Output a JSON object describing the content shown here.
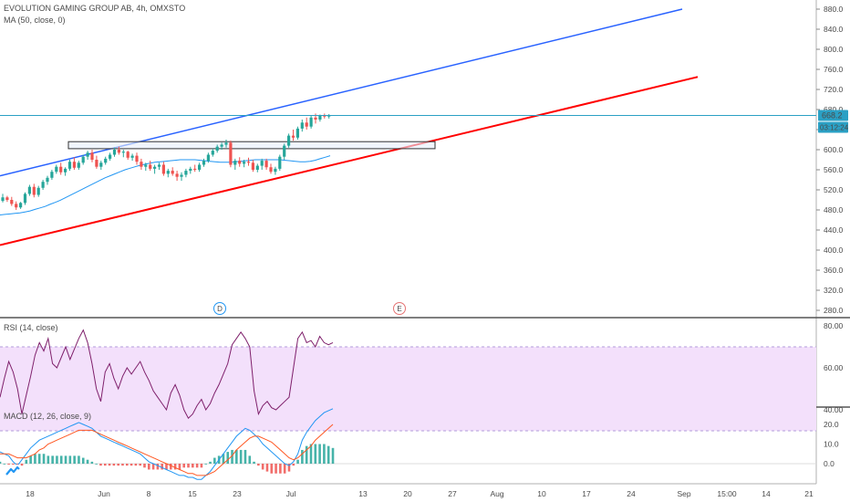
{
  "chart_data": {
    "type": "candlestick",
    "title": "EVOLUTION GAMING GROUP AB, 4h, OMXSTO",
    "indicator_label": "MA (50, close, 0)",
    "current_price": "668.2",
    "countdown": "03:12:24",
    "price_axis": {
      "ticks": [
        "880.0",
        "840.0",
        "800.0",
        "760.0",
        "720.0",
        "680.0",
        "640.0",
        "600.0",
        "560.0",
        "520.0",
        "480.0",
        "440.0",
        "400.0",
        "360.0",
        "320.0",
        "280.0"
      ],
      "range": [
        260,
        900
      ]
    },
    "time_axis": {
      "ticks": [
        "18",
        "Jun",
        "8",
        "15",
        "23",
        "Jul",
        "13",
        "20",
        "27",
        "Aug",
        "10",
        "17",
        "24",
        "Sep",
        "15:00",
        "14",
        "21"
      ]
    },
    "markers": [
      "D",
      "E"
    ],
    "rsi": {
      "label": "RSI (14, close)",
      "ticks": [
        "80.00",
        "60.00",
        "40.00"
      ],
      "range": [
        25,
        85
      ],
      "band": [
        30,
        70
      ],
      "values": [
        46,
        55,
        63,
        58,
        50,
        38,
        47,
        56,
        66,
        72,
        68,
        74,
        62,
        60,
        65,
        70,
        64,
        69,
        74,
        78,
        72,
        62,
        50,
        44,
        58,
        62,
        55,
        50,
        56,
        60,
        57,
        60,
        63,
        58,
        54,
        49,
        46,
        43,
        40,
        48,
        52,
        47,
        40,
        36,
        38,
        42,
        45,
        40,
        43,
        48,
        52,
        57,
        62,
        71,
        74,
        77,
        74,
        70,
        49,
        38,
        42,
        44,
        41,
        40,
        42,
        44,
        46,
        60,
        74,
        77,
        72,
        73,
        70,
        75,
        72,
        71,
        72
      ]
    },
    "macd": {
      "label": "MACD (12, 26, close, 9)",
      "ticks": [
        "20.0",
        "10.0",
        "0.0"
      ],
      "range": [
        -10,
        30
      ],
      "macd_line": [
        6,
        5,
        4,
        1,
        -1,
        2,
        5,
        8,
        10,
        12,
        13,
        14,
        15,
        16,
        17,
        18,
        19,
        20,
        21,
        20,
        19,
        18,
        16,
        14,
        13,
        12,
        11,
        10,
        9,
        8,
        7,
        6,
        5,
        3,
        1,
        0,
        -1,
        -2,
        -3,
        -4,
        -5,
        -6,
        -6,
        -7,
        -7,
        -8,
        -8,
        -6,
        -4,
        -1,
        2,
        5,
        8,
        11,
        14,
        16,
        18,
        17,
        15,
        13,
        10,
        8,
        6,
        4,
        2,
        0,
        -1,
        1,
        5,
        12,
        16,
        19,
        22,
        24,
        26,
        27,
        28
      ],
      "signal_line": [
        5,
        5,
        5,
        4,
        3,
        3,
        3,
        4,
        5,
        7,
        8,
        10,
        11,
        12,
        13,
        14,
        15,
        16,
        17,
        17,
        17,
        17,
        16,
        15,
        14,
        13,
        12,
        11,
        10,
        9,
        8,
        7,
        6,
        5,
        4,
        3,
        2,
        1,
        0,
        -1,
        -2,
        -3,
        -4,
        -5,
        -5,
        -6,
        -6,
        -6,
        -5,
        -4,
        -2,
        0,
        2,
        4,
        7,
        9,
        11,
        13,
        14,
        14,
        13,
        12,
        11,
        9,
        7,
        5,
        3,
        2,
        3,
        5,
        7,
        9,
        12,
        14,
        16,
        18,
        20
      ],
      "histogram": [
        1,
        0,
        -1,
        -3,
        -4,
        -1,
        2,
        4,
        5,
        5,
        5,
        4,
        4,
        4,
        4,
        4,
        4,
        4,
        4,
        3,
        2,
        1,
        0,
        -1,
        -1,
        -1,
        -1,
        -1,
        -1,
        -1,
        -1,
        -1,
        -1,
        -2,
        -3,
        -3,
        -3,
        -3,
        -3,
        -3,
        -3,
        -3,
        -2,
        -2,
        -2,
        -2,
        -2,
        0,
        1,
        3,
        4,
        5,
        6,
        7,
        7,
        7,
        7,
        4,
        1,
        -1,
        -3,
        -4,
        -5,
        -5,
        -5,
        -5,
        -4,
        -1,
        2,
        7,
        9,
        10,
        10,
        10,
        10,
        9,
        8
      ]
    },
    "candles": [
      [
        498,
        512,
        495,
        505
      ],
      [
        505,
        508,
        496,
        500
      ],
      [
        500,
        506,
        488,
        492
      ],
      [
        492,
        497,
        480,
        485
      ],
      [
        485,
        496,
        482,
        494
      ],
      [
        494,
        515,
        490,
        512
      ],
      [
        512,
        530,
        508,
        526
      ],
      [
        526,
        532,
        505,
        510
      ],
      [
        510,
        528,
        506,
        524
      ],
      [
        524,
        540,
        520,
        536
      ],
      [
        536,
        548,
        530,
        544
      ],
      [
        544,
        560,
        540,
        556
      ],
      [
        556,
        570,
        552,
        566
      ],
      [
        566,
        574,
        550,
        555
      ],
      [
        555,
        565,
        548,
        562
      ],
      [
        562,
        580,
        558,
        576
      ],
      [
        576,
        585,
        560,
        564
      ],
      [
        564,
        578,
        560,
        574
      ],
      [
        574,
        590,
        570,
        586
      ],
      [
        586,
        598,
        580,
        594
      ],
      [
        594,
        600,
        575,
        580
      ],
      [
        580,
        588,
        562,
        566
      ],
      [
        566,
        578,
        560,
        574
      ],
      [
        574,
        586,
        570,
        582
      ],
      [
        582,
        594,
        578,
        590
      ],
      [
        590,
        604,
        586,
        600
      ],
      [
        600,
        606,
        590,
        594
      ],
      [
        594,
        600,
        585,
        596
      ],
      [
        596,
        598,
        580,
        584
      ],
      [
        584,
        592,
        578,
        588
      ],
      [
        588,
        594,
        570,
        576
      ],
      [
        576,
        582,
        560,
        566
      ],
      [
        566,
        574,
        558,
        570
      ],
      [
        570,
        578,
        558,
        562
      ],
      [
        562,
        570,
        552,
        566
      ],
      [
        566,
        574,
        560,
        570
      ],
      [
        570,
        576,
        548,
        552
      ],
      [
        552,
        562,
        545,
        558
      ],
      [
        558,
        565,
        548,
        552
      ],
      [
        552,
        558,
        538,
        546
      ],
      [
        546,
        555,
        538,
        550
      ],
      [
        550,
        562,
        545,
        558
      ],
      [
        558,
        566,
        552,
        562
      ],
      [
        562,
        570,
        556,
        560
      ],
      [
        560,
        574,
        556,
        570
      ],
      [
        570,
        582,
        566,
        578
      ],
      [
        578,
        594,
        574,
        590
      ],
      [
        590,
        602,
        586,
        598
      ],
      [
        598,
        610,
        594,
        606
      ],
      [
        606,
        614,
        600,
        610
      ],
      [
        610,
        620,
        604,
        614
      ],
      [
        614,
        618,
        565,
        570
      ],
      [
        570,
        582,
        560,
        578
      ],
      [
        578,
        585,
        566,
        572
      ],
      [
        572,
        580,
        565,
        576
      ],
      [
        576,
        584,
        568,
        574
      ],
      [
        574,
        580,
        556,
        560
      ],
      [
        560,
        572,
        555,
        568
      ],
      [
        568,
        582,
        560,
        578
      ],
      [
        578,
        582,
        560,
        565
      ],
      [
        565,
        572,
        552,
        556
      ],
      [
        556,
        566,
        550,
        562
      ],
      [
        562,
        590,
        558,
        586
      ],
      [
        586,
        612,
        580,
        608
      ],
      [
        608,
        632,
        604,
        628
      ],
      [
        628,
        640,
        618,
        624
      ],
      [
        624,
        646,
        620,
        642
      ],
      [
        642,
        660,
        636,
        654
      ],
      [
        654,
        664,
        640,
        646
      ],
      [
        646,
        668,
        642,
        664
      ],
      [
        664,
        672,
        652,
        660
      ],
      [
        660,
        670,
        656,
        668
      ],
      [
        668,
        672,
        662,
        666
      ],
      [
        666,
        671,
        662,
        668
      ]
    ],
    "ma_values": [
      470,
      471,
      472,
      473,
      474,
      476,
      478,
      481,
      484,
      487,
      491,
      495,
      499,
      504,
      509,
      514,
      519,
      524,
      529,
      534,
      539,
      544,
      548,
      552,
      556,
      560,
      563,
      566,
      569,
      571,
      573,
      575,
      576,
      577,
      578,
      579,
      580,
      580,
      580,
      580,
      579,
      578,
      577,
      576,
      575,
      575,
      575,
      576,
      577,
      578,
      579,
      580,
      580,
      580,
      580,
      580,
      580,
      579,
      578,
      577,
      576,
      576,
      577,
      579,
      582,
      585,
      588
    ],
    "trend_lines": [
      {
        "color": "#2962ff",
        "from": [
          "start",
          548
        ],
        "to": [
          "Sep",
          880
        ]
      },
      {
        "color": "#ff0000",
        "from": [
          "start",
          410
        ],
        "to": [
          "Sep+",
          745
        ]
      }
    ],
    "zone": {
      "top": 616,
      "bottom": 602
    },
    "colors": {
      "up": "#26a69a",
      "down": "#ef5350",
      "ma": "#2196f3",
      "rsi": "#7e1f6b",
      "macd": "#2196f3",
      "signal": "#ff5722",
      "price_label": "#2ba0c4"
    }
  }
}
